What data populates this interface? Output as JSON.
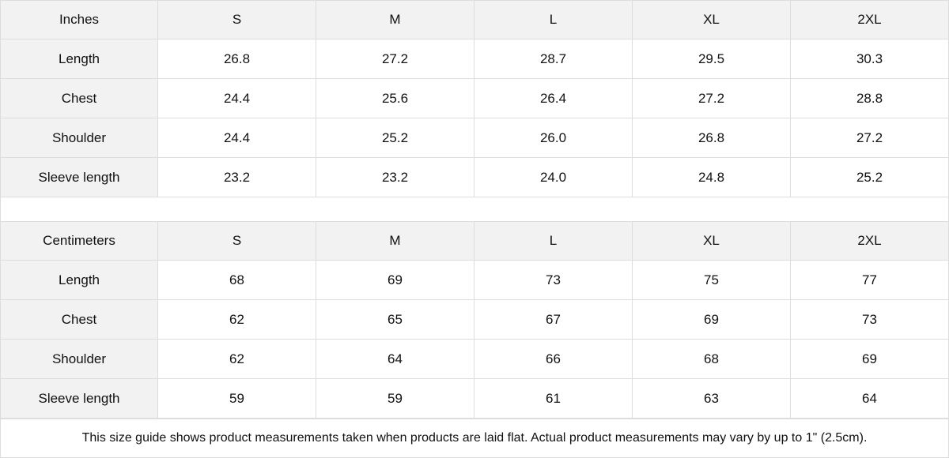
{
  "tables": [
    {
      "unit_label": "Inches",
      "sizes": [
        "S",
        "M",
        "L",
        "XL",
        "2XL"
      ],
      "rows": [
        {
          "label": "Length",
          "values": [
            "26.8",
            "27.2",
            "28.7",
            "29.5",
            "30.3"
          ]
        },
        {
          "label": "Chest",
          "values": [
            "24.4",
            "25.6",
            "26.4",
            "27.2",
            "28.8"
          ]
        },
        {
          "label": "Shoulder",
          "values": [
            "24.4",
            "25.2",
            "26.0",
            "26.8",
            "27.2"
          ]
        },
        {
          "label": "Sleeve length",
          "values": [
            "23.2",
            "23.2",
            "24.0",
            "24.8",
            "25.2"
          ]
        }
      ]
    },
    {
      "unit_label": "Centimeters",
      "sizes": [
        "S",
        "M",
        "L",
        "XL",
        "2XL"
      ],
      "rows": [
        {
          "label": "Length",
          "values": [
            "68",
            "69",
            "73",
            "75",
            "77"
          ]
        },
        {
          "label": "Chest",
          "values": [
            "62",
            "65",
            "67",
            "69",
            "73"
          ]
        },
        {
          "label": "Shoulder",
          "values": [
            "62",
            "64",
            "66",
            "68",
            "69"
          ]
        },
        {
          "label": "Sleeve length",
          "values": [
            "59",
            "59",
            "61",
            "63",
            "64"
          ]
        }
      ]
    }
  ],
  "footnote": "This size guide shows product measurements taken when products are laid flat.  Actual product measurements may vary by up to 1\" (2.5cm).",
  "colors": {
    "header_bg": "#f2f2f2",
    "border": "#dddddd"
  }
}
